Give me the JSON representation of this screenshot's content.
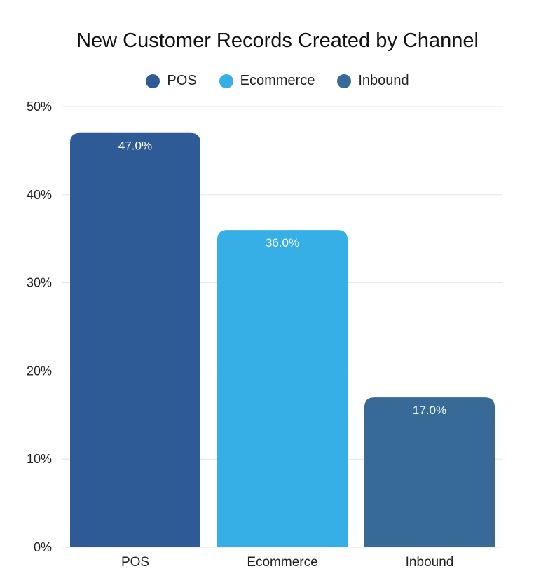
{
  "chart_data": {
    "type": "bar",
    "title": "New Customer Records Created by Channel",
    "xlabel": "",
    "ylabel": "",
    "categories": [
      "POS",
      "Ecommerce",
      "Inbound"
    ],
    "values": [
      47.0,
      36.0,
      17.0
    ],
    "data_labels": [
      "47.0%",
      "36.0%",
      "17.0%"
    ],
    "colors": [
      "#2e5b95",
      "#36aee6",
      "#386a98"
    ],
    "legend": {
      "placement": "top-center",
      "entries": [
        "POS",
        "Ecommerce",
        "Inbound"
      ]
    },
    "ylim": [
      0,
      50
    ],
    "yticks": [
      0,
      10,
      20,
      30,
      40,
      50
    ],
    "ytick_labels": [
      "0%",
      "10%",
      "20%",
      "30%",
      "40%",
      "50%"
    ],
    "grid": true
  }
}
